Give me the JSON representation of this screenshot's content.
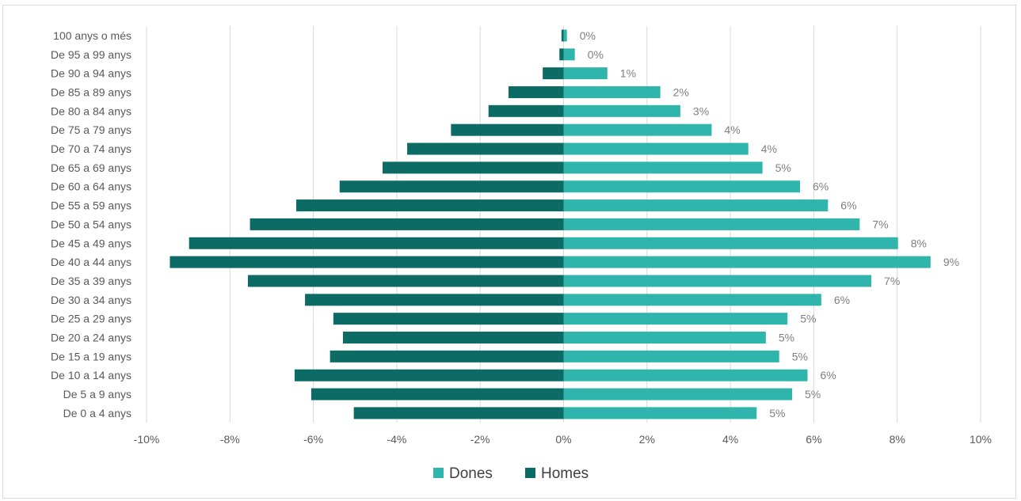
{
  "chart_data": {
    "type": "bar",
    "orientation": "horizontal",
    "categories": [
      "100 anys o més",
      "De 95 a 99 anys",
      "De 90 a 94 anys",
      "De 85 a 89 anys",
      "De 80 a 84 anys",
      "De 75 a 79 anys",
      "De 70 a 74 anys",
      "De 65 a 69 anys",
      "De 60 a 64 anys",
      "De 55 a 59 anys",
      "De 50 a 54 anys",
      "De 45 a 49 anys",
      "De 40 a 44 anys",
      "De 35 a 39 anys",
      "De 30 a 34 anys",
      "De 25 a 29 anys",
      "De 20 a 24 anys",
      "De 15 a 19 anys",
      "De 10 a 14 anys",
      "De 5 a 9 anys",
      "De 0 a 4 anys"
    ],
    "series": [
      {
        "name": "Dones",
        "color": "#2fb5ac",
        "values": [
          0.08,
          0.27,
          1.05,
          2.32,
          2.8,
          3.55,
          4.43,
          4.77,
          5.67,
          6.34,
          7.1,
          8.02,
          8.8,
          7.38,
          6.18,
          5.37,
          4.85,
          5.17,
          5.85,
          5.48,
          4.63
        ],
        "data_labels": [
          "0%",
          "0%",
          "1%",
          "2%",
          "3%",
          "4%",
          "4%",
          "5%",
          "6%",
          "6%",
          "7%",
          "8%",
          "9%",
          "7%",
          "6%",
          "5%",
          "5%",
          "5%",
          "6%",
          "5%",
          "5%"
        ]
      },
      {
        "name": "Homes",
        "color": "#0d6b66",
        "values": [
          -0.05,
          -0.1,
          -0.5,
          -1.32,
          -1.8,
          -2.7,
          -3.75,
          -4.34,
          -5.37,
          -6.41,
          -7.52,
          -8.98,
          -9.44,
          -7.57,
          -6.2,
          -5.52,
          -5.29,
          -5.6,
          -6.45,
          -6.05,
          -5.03
        ]
      }
    ],
    "x_ticks": [
      "-10%",
      "-8%",
      "-6%",
      "-4%",
      "-2%",
      "0%",
      "2%",
      "4%",
      "6%",
      "8%",
      "10%"
    ],
    "xlim": [
      -10,
      10
    ],
    "grid": true,
    "legend_position": "bottom",
    "legend": [
      "Dones",
      "Homes"
    ],
    "title": "",
    "xlabel": "",
    "ylabel": ""
  }
}
